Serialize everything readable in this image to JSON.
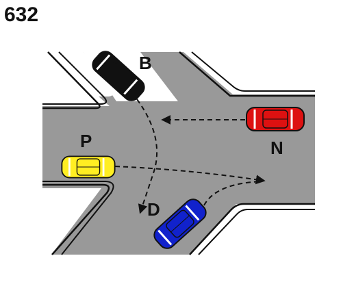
{
  "question_number": "632",
  "colors": {
    "road": "#999999",
    "curb": "#111111",
    "sidewalk": "#ffffff",
    "path": "#111111"
  },
  "vehicles": [
    {
      "label": "B",
      "color": "#111111",
      "icon": "car-icon"
    },
    {
      "label": "N",
      "color": "#dd1111",
      "icon": "car-icon"
    },
    {
      "label": "P",
      "color": "#ffee22",
      "icon": "car-icon"
    },
    {
      "label": "D",
      "color": "#1122cc",
      "icon": "car-icon"
    }
  ]
}
